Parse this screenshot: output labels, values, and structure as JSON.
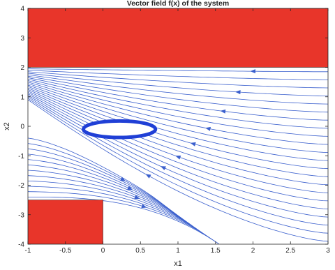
{
  "chart_data": {
    "type": "line",
    "title": "Vector field f(x) of the system",
    "xlabel": "x1",
    "ylabel": "x2",
    "xlim": [
      -1,
      3
    ],
    "ylim": [
      -4,
      4
    ],
    "xticks": [
      -1,
      -0.5,
      0,
      0.5,
      1,
      1.5,
      2,
      2.5,
      3
    ],
    "yticks": [
      -4,
      -3,
      -2,
      -1,
      0,
      1,
      2,
      3,
      4
    ],
    "xtick_labels": [
      "-1",
      "-0.5",
      "0",
      "0.5",
      "1",
      "1.5",
      "2",
      "2.5",
      "3"
    ],
    "ytick_labels": [
      "-4",
      "-3",
      "-2",
      "-1",
      "0",
      "1",
      "2",
      "3",
      "4"
    ],
    "grid": false,
    "colors": {
      "streamline": "#3a5fcd",
      "obstacle": "#e8352a",
      "limit_cycle": "#1f3fd6",
      "axes": "#262626"
    },
    "obstacles": [
      {
        "x": [
          -1,
          3
        ],
        "y": [
          2,
          4
        ]
      },
      {
        "x": [
          -1,
          0
        ],
        "y": [
          -4,
          -2.5
        ]
      }
    ],
    "limit_cycle": {
      "center": [
        0.22,
        -0.1
      ],
      "rx": 0.48,
      "ry": 0.28
    },
    "flow": {
      "upper_family": {
        "count": 22,
        "start_x": 3,
        "start_y_range": [
          1.85,
          -3.9
        ],
        "converge_to": [
          -1,
          1.95
        ]
      },
      "lower_family": {
        "count": 12,
        "start_x": -1,
        "start_y_range": [
          -0.4,
          -2.4
        ],
        "funnel": [
          1.0,
          -1.6
        ],
        "end_y_range": [
          -3.1,
          -4.0
        ]
      }
    }
  }
}
